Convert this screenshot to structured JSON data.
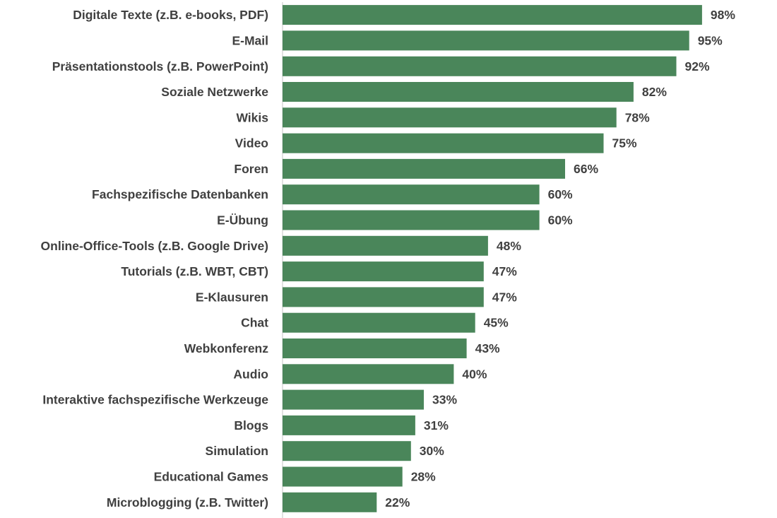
{
  "chart_data": {
    "type": "bar",
    "orientation": "horizontal",
    "categories": [
      "Digitale Texte (z.B. e-books, PDF)",
      "E-Mail",
      "Präsentationstools (z.B. PowerPoint)",
      "Soziale Netzwerke",
      "Wikis",
      "Video",
      "Foren",
      "Fachspezifische Datenbanken",
      "E-Übung",
      "Online-Office-Tools (z.B. Google Drive)",
      "Tutorials (z.B. WBT, CBT)",
      "E-Klausuren",
      "Chat",
      "Webkonferenz",
      "Audio",
      "Interaktive fachspezifische Werkzeuge",
      "Blogs",
      "Simulation",
      "Educational Games",
      "Microblogging (z.B. Twitter)"
    ],
    "values": [
      98,
      95,
      92,
      82,
      78,
      75,
      66,
      60,
      60,
      48,
      47,
      47,
      45,
      43,
      40,
      33,
      31,
      30,
      28,
      22
    ],
    "value_labels": [
      "98%",
      "95%",
      "92%",
      "82%",
      "78%",
      "75%",
      "66%",
      "60%",
      "60%",
      "48%",
      "47%",
      "47%",
      "45%",
      "43%",
      "40%",
      "33%",
      "31%",
      "30%",
      "28%",
      "22%"
    ],
    "xlim": [
      0,
      100
    ],
    "title": "",
    "xlabel": "",
    "ylabel": "",
    "grid": false,
    "legend": "none",
    "bar_color": "#4a865a",
    "text_color": "#404040",
    "axis_color": "#d9d9d9"
  }
}
